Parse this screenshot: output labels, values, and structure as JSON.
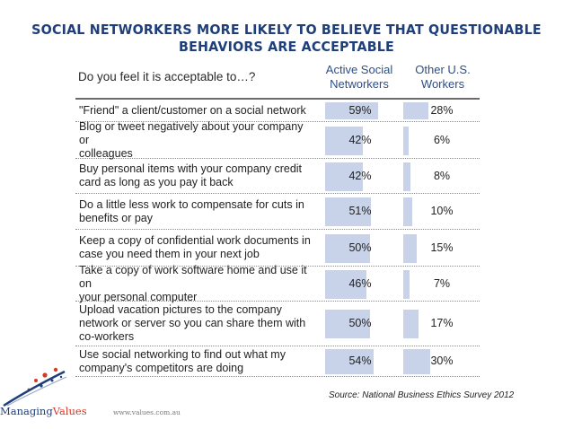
{
  "title_line1": "SOCIAL NETWORKERS MORE LIKELY TO BELIEVE THAT QUESTIONABLE",
  "title_line2": "BEHAVIORS ARE ACCEPTABLE",
  "question": "Do you feel it is acceptable to…?",
  "col1": [
    "Active Social",
    "Networkers"
  ],
  "col2": [
    "Other U.S.",
    "Workers"
  ],
  "bar_color": "#c8d2e8",
  "source": "Source: National Business Ethics Survey 2012",
  "logo": {
    "brand_a": "Managing",
    "brand_b": "Values",
    "url": "www.values.com.au"
  },
  "chart_data": {
    "type": "bar",
    "title": "SOCIAL NETWORKERS MORE LIKELY TO BELIEVE THAT QUESTIONABLE BEHAVIORS ARE ACCEPTABLE",
    "xlabel": "",
    "ylabel": "",
    "unit": "%",
    "xlim": [
      0,
      100
    ],
    "categories": [
      [
        "\"Friend\" a client/customer on a social network"
      ],
      [
        "Blog or tweet negatively about your company or",
        "colleagues"
      ],
      [
        "Buy personal items with your company credit",
        "card as long as you pay it back"
      ],
      [
        "Do a little less work to compensate for cuts in",
        "benefits or pay"
      ],
      [
        "Keep a copy of confidential work documents in",
        "case you need them in your next job"
      ],
      [
        "Take a copy of work software home and use it on",
        "your personal computer"
      ],
      [
        "Upload vacation pictures to the company",
        "network or server so you can share them with",
        "co-workers"
      ],
      [
        "Use social networking to find out what my",
        "company's competitors are doing"
      ]
    ],
    "series": [
      {
        "name": "Active Social Networkers",
        "values": [
          59,
          42,
          42,
          51,
          50,
          46,
          50,
          54
        ],
        "labels": [
          "59%",
          "42%",
          "42%",
          "51%",
          "50%",
          "46%",
          "50%",
          "54%"
        ]
      },
      {
        "name": "Other U.S. Workers",
        "values": [
          28,
          6,
          8,
          10,
          15,
          7,
          17,
          30
        ],
        "labels": [
          "28%",
          "6%",
          "8%",
          "10%",
          "15%",
          "7%",
          "17%",
          "30%"
        ]
      }
    ]
  }
}
